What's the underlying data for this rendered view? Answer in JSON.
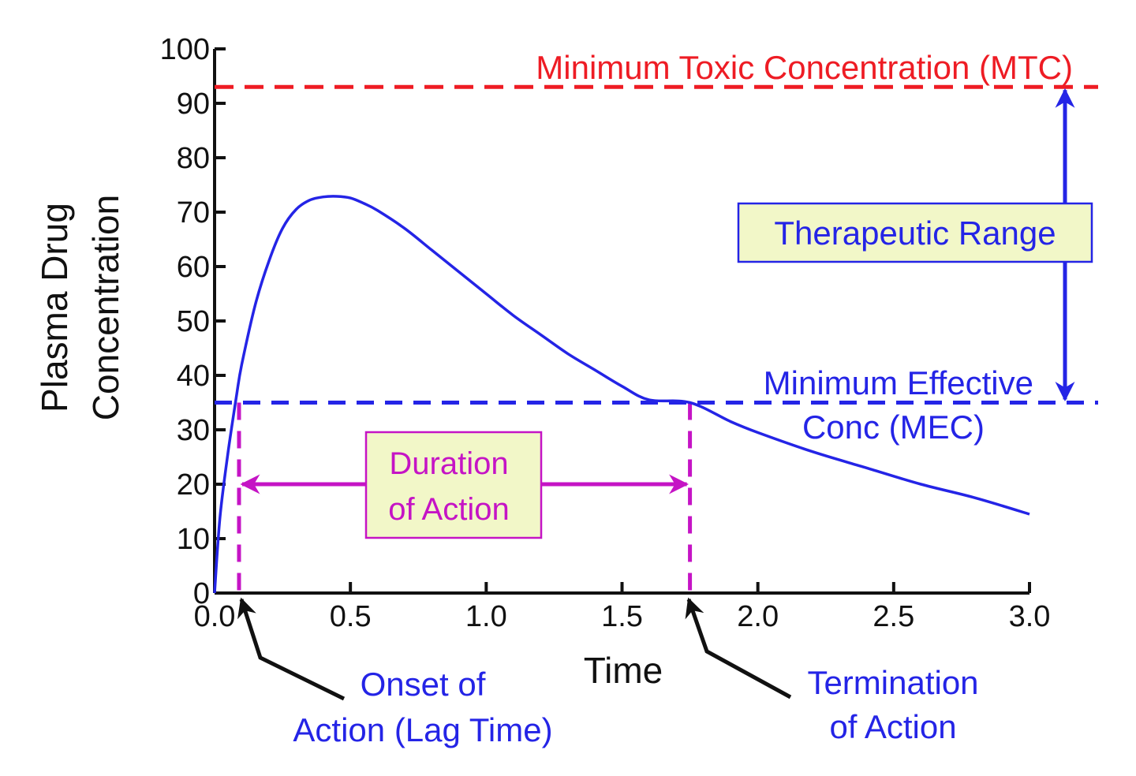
{
  "chart_data": {
    "type": "line",
    "title": "",
    "xlabel": "Time",
    "ylabel_line1": "Plasma Drug",
    "ylabel_line2": "Concentration",
    "xlim": [
      0,
      3
    ],
    "ylim": [
      0,
      100
    ],
    "x_ticks": [
      0,
      0.5,
      1.0,
      1.5,
      2.0,
      2.5,
      3.0
    ],
    "x_tick_labels": [
      "0.0",
      "0.5",
      "1.0",
      "1.5",
      "2.0",
      "2.5",
      "3.0"
    ],
    "y_ticks": [
      0,
      10,
      20,
      30,
      40,
      50,
      60,
      70,
      80,
      90,
      100
    ],
    "y_tick_labels": [
      "0",
      "10",
      "20",
      "30",
      "40",
      "50",
      "60",
      "70",
      "80",
      "90",
      "100"
    ],
    "grid": false,
    "series": [
      {
        "color": "#2424e6",
        "x": [
          0,
          0.02,
          0.05,
          0.08,
          0.1,
          0.15,
          0.2,
          0.25,
          0.3,
          0.35,
          0.4,
          0.45,
          0.5,
          0.55,
          0.6,
          0.7,
          0.8,
          0.9,
          1.0,
          1.1,
          1.2,
          1.3,
          1.4,
          1.5,
          1.6,
          1.75,
          1.9,
          2.0,
          2.2,
          2.4,
          2.6,
          2.8,
          3.0
        ],
        "y": [
          0,
          14,
          26,
          36,
          42,
          53,
          61,
          67,
          70.5,
          72.2,
          72.8,
          72.9,
          72.6,
          71.6,
          70.3,
          67,
          63,
          59,
          55,
          51,
          47.5,
          44,
          41,
          38,
          35.5,
          35,
          31.5,
          29.5,
          26,
          23,
          20,
          17.5,
          14.5
        ]
      }
    ],
    "reference_lines": {
      "mtc": {
        "y": 93,
        "color": "#ee1c24",
        "label": "Minimum Toxic Concentration (MTC)"
      },
      "mec": {
        "y": 35,
        "color": "#2424e6",
        "label_line1": "Minimum Effective",
        "label_line2": "Conc (MEC)"
      }
    },
    "markers": {
      "onset_x": 0.09,
      "termination_x": 1.75,
      "color": "#c514c5"
    },
    "annotations": {
      "therapeutic_range": "Therapeutic Range",
      "duration_line1": "Duration",
      "duration_line2": "of Action",
      "onset_line1": "Onset of",
      "onset_line2": "Action (Lag Time)",
      "termination_line1": "Termination",
      "termination_line2": "of Action"
    },
    "colors": {
      "curve": "#2424e6",
      "toxic": "#ee1c24",
      "magenta": "#c514c5",
      "box_fill": "#f2f7c8",
      "axis": "#111111"
    }
  }
}
